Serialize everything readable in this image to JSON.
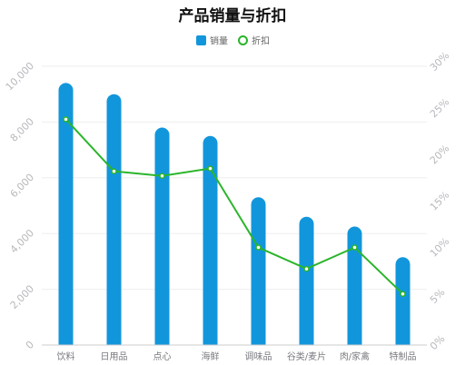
{
  "chart_data": {
    "type": "bar",
    "title": "产品销量与折扣",
    "categories": [
      "饮料",
      "日用品",
      "点心",
      "海鲜",
      "调味品",
      "谷类/麦片",
      "肉/家禽",
      "特制品"
    ],
    "series": [
      {
        "name": "销量",
        "type": "bar",
        "axis": "left",
        "values": [
          9400,
          9000,
          7800,
          7500,
          5300,
          4600,
          4250,
          3150
        ]
      },
      {
        "name": "折扣",
        "type": "line",
        "axis": "right",
        "values": [
          24.3,
          18.7,
          18.2,
          19.0,
          10.5,
          8.2,
          10.5,
          5.5
        ]
      }
    ],
    "y_left": {
      "min": 0,
      "max": 10000,
      "ticks": [
        "0",
        "2,000",
        "4,000",
        "6,000",
        "8,000",
        "10,000"
      ]
    },
    "y_right": {
      "min": 0,
      "max": 30,
      "ticks": [
        "0%",
        "5%",
        "10%",
        "15%",
        "20%",
        "25%",
        "30%"
      ]
    },
    "legend_position": "top-center",
    "grid": true,
    "colors": {
      "bar": "#1296db",
      "line": "#2ab52a",
      "grid": "#eeeeee",
      "axis": "#cccccc"
    }
  }
}
